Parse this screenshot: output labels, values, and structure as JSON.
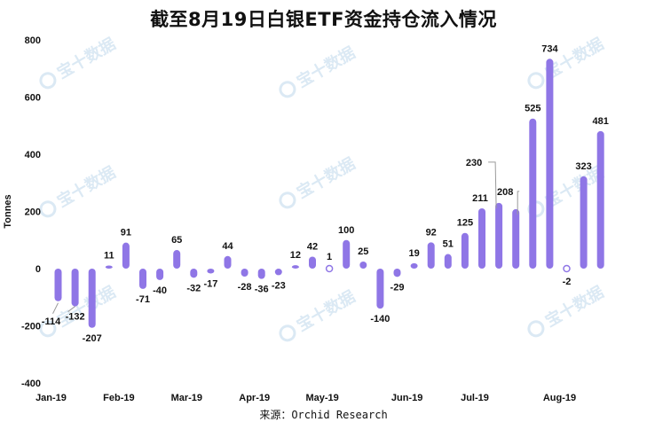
{
  "title": "截至8月19日白银ETF资金持仓流入情况",
  "source": "来源：Orchid Research",
  "watermark_text": "宝十数据",
  "colors": {
    "bar": "#8f76e6",
    "bar_edge": "#7d63dc",
    "connector": "#9a9a9a"
  },
  "chart_data": {
    "type": "bar",
    "ylabel": "Tonnes",
    "ylim": [
      -400,
      800
    ],
    "yticks": [
      800,
      600,
      400,
      200,
      0,
      -200,
      -400
    ],
    "grid": false,
    "xticks": [
      {
        "label": "Jan-19",
        "at": 0
      },
      {
        "label": "Feb-19",
        "at": 4
      },
      {
        "label": "Mar-19",
        "at": 8
      },
      {
        "label": "Apr-19",
        "at": 12
      },
      {
        "label": "May-19",
        "at": 16
      },
      {
        "label": "Jun-19",
        "at": 21
      },
      {
        "label": "Jul-19",
        "at": 25
      },
      {
        "label": "Aug-19",
        "at": 30
      }
    ],
    "values": [
      -114,
      -132,
      -207,
      11,
      91,
      -71,
      -40,
      65,
      -32,
      -17,
      44,
      -28,
      -36,
      -23,
      12,
      42,
      1,
      100,
      25,
      -140,
      -29,
      19,
      92,
      51,
      125,
      211,
      230,
      208,
      525,
      734,
      -2,
      323,
      481
    ]
  }
}
